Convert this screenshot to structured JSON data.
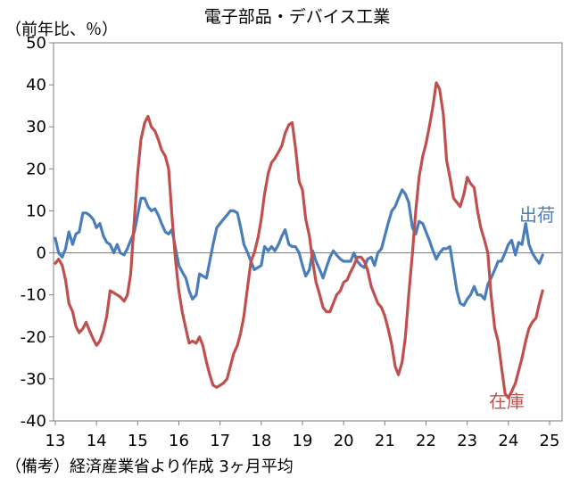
{
  "chart_data": {
    "type": "line",
    "title": "電子部品・デバイス工業",
    "unit_label": "（前年比、％）",
    "note": "（備考）経済産業省より作成 3ヶ月平均",
    "ylim": [
      -40,
      50
    ],
    "yticks": [
      -40,
      -30,
      -20,
      -10,
      0,
      10,
      20,
      30,
      40,
      50
    ],
    "xlim": [
      13,
      25.2
    ],
    "xticks": [
      13,
      14,
      15,
      16,
      17,
      18,
      19,
      20,
      21,
      22,
      23,
      24,
      25
    ],
    "grid": false,
    "series": [
      {
        "name": "出荷",
        "color": "#4a7ebb",
        "points": [
          [
            13.0,
            3.5
          ],
          [
            13.08,
            0
          ],
          [
            13.17,
            -1
          ],
          [
            13.25,
            1
          ],
          [
            13.33,
            5
          ],
          [
            13.42,
            2
          ],
          [
            13.5,
            4.5
          ],
          [
            13.58,
            5
          ],
          [
            13.67,
            9.5
          ],
          [
            13.75,
            9.5
          ],
          [
            13.83,
            9
          ],
          [
            13.92,
            8
          ],
          [
            14.0,
            6
          ],
          [
            14.08,
            7
          ],
          [
            14.17,
            4
          ],
          [
            14.25,
            2.5
          ],
          [
            14.33,
            2
          ],
          [
            14.42,
            0
          ],
          [
            14.5,
            2
          ],
          [
            14.58,
            0
          ],
          [
            14.67,
            -0.5
          ],
          [
            14.75,
            1
          ],
          [
            14.83,
            3
          ],
          [
            14.92,
            5
          ],
          [
            15.0,
            9
          ],
          [
            15.08,
            13
          ],
          [
            15.17,
            13
          ],
          [
            15.25,
            11
          ],
          [
            15.33,
            10
          ],
          [
            15.42,
            10.5
          ],
          [
            15.5,
            9
          ],
          [
            15.58,
            7
          ],
          [
            15.67,
            5
          ],
          [
            15.75,
            4.5
          ],
          [
            15.83,
            5.5
          ],
          [
            15.92,
            1
          ],
          [
            16.0,
            -3
          ],
          [
            16.08,
            -4.5
          ],
          [
            16.17,
            -6
          ],
          [
            16.25,
            -9
          ],
          [
            16.33,
            -11
          ],
          [
            16.42,
            -10
          ],
          [
            16.5,
            -5
          ],
          [
            16.58,
            -5.5
          ],
          [
            16.67,
            -6
          ],
          [
            16.75,
            -2
          ],
          [
            16.83,
            2
          ],
          [
            16.92,
            6
          ],
          [
            17.0,
            7
          ],
          [
            17.08,
            8
          ],
          [
            17.17,
            9
          ],
          [
            17.25,
            10
          ],
          [
            17.33,
            10
          ],
          [
            17.42,
            9.5
          ],
          [
            17.5,
            6
          ],
          [
            17.58,
            2
          ],
          [
            17.67,
            0
          ],
          [
            17.75,
            -2
          ],
          [
            17.83,
            -4
          ],
          [
            17.92,
            -3.5
          ],
          [
            18.0,
            -3
          ],
          [
            18.08,
            1.5
          ],
          [
            18.17,
            0.5
          ],
          [
            18.25,
            1.5
          ],
          [
            18.33,
            0.5
          ],
          [
            18.42,
            2
          ],
          [
            18.5,
            4
          ],
          [
            18.58,
            5.5
          ],
          [
            18.67,
            2
          ],
          [
            18.75,
            1.5
          ],
          [
            18.83,
            1.5
          ],
          [
            18.92,
            0
          ],
          [
            19.0,
            -3
          ],
          [
            19.08,
            -5.5
          ],
          [
            19.17,
            -4
          ],
          [
            19.25,
            0.5
          ],
          [
            19.33,
            -2
          ],
          [
            19.42,
            -4
          ],
          [
            19.5,
            -6
          ],
          [
            19.58,
            -3.5
          ],
          [
            19.67,
            -1
          ],
          [
            19.75,
            0.5
          ],
          [
            19.83,
            -0.5
          ],
          [
            19.92,
            -1.5
          ],
          [
            20.0,
            -2
          ],
          [
            20.08,
            -2
          ],
          [
            20.17,
            -2
          ],
          [
            20.25,
            0
          ],
          [
            20.33,
            -2
          ],
          [
            20.42,
            -3
          ],
          [
            20.5,
            -3.5
          ],
          [
            20.58,
            -1.5
          ],
          [
            20.67,
            -1
          ],
          [
            20.75,
            -3
          ],
          [
            20.83,
            0
          ],
          [
            20.92,
            1
          ],
          [
            21.0,
            4
          ],
          [
            21.08,
            7
          ],
          [
            21.17,
            10
          ],
          [
            21.25,
            11
          ],
          [
            21.33,
            13
          ],
          [
            21.42,
            15
          ],
          [
            21.5,
            14
          ],
          [
            21.58,
            12
          ],
          [
            21.67,
            6
          ],
          [
            21.75,
            4.5
          ],
          [
            21.83,
            7.5
          ],
          [
            21.92,
            7
          ],
          [
            22.0,
            5
          ],
          [
            22.08,
            3
          ],
          [
            22.17,
            0.5
          ],
          [
            22.25,
            -1.5
          ],
          [
            22.33,
            0
          ],
          [
            22.42,
            1
          ],
          [
            22.5,
            1
          ],
          [
            22.58,
            1.5
          ],
          [
            22.67,
            -4
          ],
          [
            22.75,
            -9
          ],
          [
            22.83,
            -12
          ],
          [
            22.92,
            -12.5
          ],
          [
            23.0,
            -11
          ],
          [
            23.08,
            -10
          ],
          [
            23.17,
            -8
          ],
          [
            23.25,
            -10
          ],
          [
            23.33,
            -10
          ],
          [
            23.42,
            -11
          ],
          [
            23.5,
            -7.5
          ],
          [
            23.58,
            -6
          ],
          [
            23.67,
            -4
          ],
          [
            23.75,
            -2
          ],
          [
            23.83,
            -2
          ],
          [
            23.92,
            0
          ],
          [
            24.0,
            2
          ],
          [
            24.08,
            3
          ],
          [
            24.17,
            -0.5
          ],
          [
            24.25,
            2.5
          ],
          [
            24.33,
            2
          ],
          [
            24.42,
            7
          ],
          [
            24.5,
            2
          ],
          [
            24.58,
            0
          ],
          [
            24.67,
            -1.5
          ],
          [
            24.75,
            -2.5
          ],
          [
            24.83,
            -0.5
          ]
        ]
      },
      {
        "name": "在庫",
        "color": "#c0504d",
        "points": [
          [
            13.0,
            -2.5
          ],
          [
            13.08,
            -1.5
          ],
          [
            13.17,
            -3
          ],
          [
            13.25,
            -6.5
          ],
          [
            13.33,
            -12
          ],
          [
            13.42,
            -14
          ],
          [
            13.5,
            -17.5
          ],
          [
            13.58,
            -19
          ],
          [
            13.67,
            -18
          ],
          [
            13.75,
            -16.5
          ],
          [
            13.83,
            -18.5
          ],
          [
            13.92,
            -20.5
          ],
          [
            14.0,
            -22
          ],
          [
            14.08,
            -21
          ],
          [
            14.17,
            -18.5
          ],
          [
            14.25,
            -15
          ],
          [
            14.33,
            -9
          ],
          [
            14.42,
            -9.5
          ],
          [
            14.5,
            -10
          ],
          [
            14.58,
            -10.5
          ],
          [
            14.67,
            -11.5
          ],
          [
            14.75,
            -10
          ],
          [
            14.83,
            -5
          ],
          [
            14.92,
            8
          ],
          [
            15.0,
            19
          ],
          [
            15.08,
            27
          ],
          [
            15.17,
            31
          ],
          [
            15.25,
            32.5
          ],
          [
            15.33,
            30
          ],
          [
            15.42,
            29
          ],
          [
            15.5,
            27
          ],
          [
            15.58,
            24.5
          ],
          [
            15.67,
            23
          ],
          [
            15.75,
            20
          ],
          [
            15.83,
            9
          ],
          [
            15.92,
            -2
          ],
          [
            16.0,
            -9
          ],
          [
            16.08,
            -14
          ],
          [
            16.17,
            -18
          ],
          [
            16.25,
            -21.5
          ],
          [
            16.33,
            -21
          ],
          [
            16.42,
            -21.5
          ],
          [
            16.5,
            -20
          ],
          [
            16.58,
            -22
          ],
          [
            16.67,
            -26
          ],
          [
            16.75,
            -29
          ],
          [
            16.83,
            -31.5
          ],
          [
            16.92,
            -32
          ],
          [
            17.0,
            -31.5
          ],
          [
            17.08,
            -31
          ],
          [
            17.17,
            -30
          ],
          [
            17.25,
            -27
          ],
          [
            17.33,
            -24
          ],
          [
            17.42,
            -22
          ],
          [
            17.5,
            -19
          ],
          [
            17.58,
            -15
          ],
          [
            17.67,
            -8
          ],
          [
            17.75,
            -2
          ],
          [
            17.83,
            0
          ],
          [
            17.92,
            3.5
          ],
          [
            18.0,
            8
          ],
          [
            18.08,
            14
          ],
          [
            18.17,
            19
          ],
          [
            18.25,
            21.5
          ],
          [
            18.33,
            22.5
          ],
          [
            18.42,
            24
          ],
          [
            18.5,
            25.5
          ],
          [
            18.58,
            28.5
          ],
          [
            18.67,
            30.5
          ],
          [
            18.75,
            31
          ],
          [
            18.83,
            25
          ],
          [
            18.92,
            17
          ],
          [
            19.0,
            15
          ],
          [
            19.08,
            8
          ],
          [
            19.17,
            4
          ],
          [
            19.25,
            -2
          ],
          [
            19.33,
            -7
          ],
          [
            19.42,
            -10
          ],
          [
            19.5,
            -13
          ],
          [
            19.58,
            -14
          ],
          [
            19.67,
            -14
          ],
          [
            19.75,
            -12
          ],
          [
            19.83,
            -10
          ],
          [
            19.92,
            -9
          ],
          [
            20.0,
            -7
          ],
          [
            20.08,
            -6.5
          ],
          [
            20.17,
            -4.5
          ],
          [
            20.25,
            -3
          ],
          [
            20.33,
            -1
          ],
          [
            20.42,
            -1
          ],
          [
            20.5,
            -2
          ],
          [
            20.58,
            -4
          ],
          [
            20.67,
            -8
          ],
          [
            20.75,
            -10
          ],
          [
            20.83,
            -12
          ],
          [
            20.92,
            -13
          ],
          [
            21.0,
            -15
          ],
          [
            21.08,
            -18
          ],
          [
            21.17,
            -22
          ],
          [
            21.25,
            -27
          ],
          [
            21.33,
            -29
          ],
          [
            21.42,
            -26
          ],
          [
            21.5,
            -20
          ],
          [
            21.58,
            -10
          ],
          [
            21.67,
            0
          ],
          [
            21.75,
            10
          ],
          [
            21.83,
            18
          ],
          [
            21.92,
            23
          ],
          [
            22.0,
            26
          ],
          [
            22.08,
            30
          ],
          [
            22.17,
            35
          ],
          [
            22.25,
            40.5
          ],
          [
            22.33,
            39
          ],
          [
            22.42,
            33
          ],
          [
            22.5,
            22
          ],
          [
            22.58,
            18
          ],
          [
            22.67,
            13
          ],
          [
            22.75,
            12
          ],
          [
            22.83,
            11
          ],
          [
            22.92,
            14
          ],
          [
            23.0,
            18
          ],
          [
            23.08,
            16.5
          ],
          [
            23.17,
            15.5
          ],
          [
            23.25,
            10
          ],
          [
            23.33,
            6
          ],
          [
            23.42,
            3
          ],
          [
            23.5,
            0
          ],
          [
            23.58,
            -10
          ],
          [
            23.67,
            -18
          ],
          [
            23.75,
            -21
          ],
          [
            23.83,
            -27
          ],
          [
            23.92,
            -33.5
          ],
          [
            24.0,
            -34.5
          ],
          [
            24.08,
            -33
          ],
          [
            24.17,
            -31
          ],
          [
            24.25,
            -28
          ],
          [
            24.33,
            -25
          ],
          [
            24.42,
            -21
          ],
          [
            24.5,
            -18
          ],
          [
            24.58,
            -16.5
          ],
          [
            24.67,
            -15.5
          ],
          [
            24.75,
            -12
          ],
          [
            24.83,
            -9
          ]
        ]
      }
    ]
  }
}
